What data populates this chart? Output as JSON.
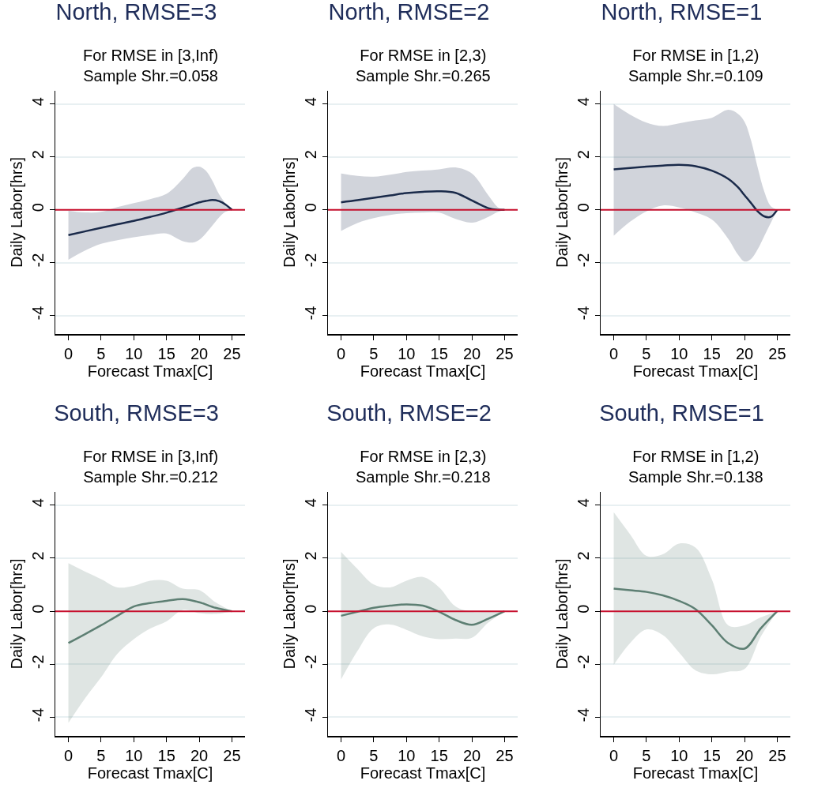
{
  "chart_data": [
    {
      "type": "line",
      "title": "North, RMSE=3",
      "subtitle": "For RMSE in [3,Inf)\nSample Shr.=0.058",
      "xlabel": "Forecast Tmax[C]",
      "ylabel": "Daily Labor[hrs]",
      "xlim": [
        -2,
        27
      ],
      "xticks": [
        0,
        5,
        10,
        15,
        20,
        25
      ],
      "ylim": [
        -4.7,
        4.5
      ],
      "yticks": [
        -4,
        -2,
        0,
        2,
        4
      ],
      "grid": "y",
      "ref_lines": [
        {
          "axis": "y",
          "value": 0,
          "color": "#c8102e"
        }
      ],
      "series": [
        {
          "color": "#1a2a4a",
          "x": [
            0,
            2.5,
            5,
            7.5,
            10,
            12.5,
            15,
            17.5,
            19,
            20,
            21,
            22,
            23,
            24,
            25
          ],
          "values": [
            -0.96,
            -0.82,
            -0.68,
            -0.55,
            -0.42,
            -0.27,
            -0.11,
            0.08,
            0.2,
            0.28,
            0.33,
            0.37,
            0.33,
            0.2,
            0
          ],
          "upper": [
            -0.04,
            -0.1,
            -0.08,
            0.1,
            0.25,
            0.4,
            0.6,
            1.17,
            1.58,
            1.63,
            1.48,
            1.1,
            0.6,
            0.25,
            0
          ],
          "lower": [
            -1.89,
            -1.55,
            -1.29,
            -1.15,
            -1.04,
            -0.95,
            -0.9,
            -1.19,
            -1.24,
            -1.14,
            -0.9,
            -0.6,
            -0.3,
            -0.08,
            0
          ]
        }
      ]
    },
    {
      "type": "line",
      "title": "North, RMSE=2",
      "subtitle": "For RMSE in [2,3)\nSample Shr.=0.265",
      "xlabel": "Forecast Tmax[C]",
      "ylabel": "Daily Labor[hrs]",
      "xlim": [
        -2,
        27
      ],
      "xticks": [
        0,
        5,
        10,
        15,
        20,
        25
      ],
      "ylim": [
        -4.7,
        4.5
      ],
      "yticks": [
        -4,
        -2,
        0,
        2,
        4
      ],
      "grid": "y",
      "ref_lines": [
        {
          "axis": "y",
          "value": 0,
          "color": "#c8102e"
        }
      ],
      "series": [
        {
          "color": "#1a2a4a",
          "x": [
            0,
            2.5,
            5,
            7.5,
            10,
            12.5,
            15,
            17.5,
            20,
            22.5,
            24,
            25
          ],
          "values": [
            0.28,
            0.36,
            0.45,
            0.54,
            0.63,
            0.68,
            0.7,
            0.64,
            0.35,
            0.06,
            0,
            0
          ],
          "upper": [
            1.37,
            1.28,
            1.25,
            1.33,
            1.43,
            1.48,
            1.53,
            1.6,
            1.37,
            0.55,
            0.09,
            0
          ],
          "lower": [
            -0.8,
            -0.5,
            -0.32,
            -0.2,
            -0.13,
            -0.11,
            -0.11,
            -0.35,
            -0.49,
            -0.27,
            -0.08,
            0
          ]
        }
      ]
    },
    {
      "type": "line",
      "title": "North, RMSE=1",
      "subtitle": "For RMSE in [1,2)\nSample Shr.=0.109",
      "xlabel": "Forecast Tmax[C]",
      "ylabel": "Daily Labor[hrs]",
      "xlim": [
        -2,
        27
      ],
      "xticks": [
        0,
        5,
        10,
        15,
        20,
        25
      ],
      "ylim": [
        -4.7,
        4.5
      ],
      "yticks": [
        -4,
        -2,
        0,
        2,
        4
      ],
      "grid": "y",
      "ref_lines": [
        {
          "axis": "y",
          "value": 0,
          "color": "#c8102e"
        }
      ],
      "series": [
        {
          "color": "#1a2a4a",
          "x": [
            0,
            2.5,
            5,
            7.5,
            10,
            12.5,
            15,
            17.5,
            19,
            20,
            21,
            22,
            23,
            24,
            25
          ],
          "values": [
            1.53,
            1.58,
            1.63,
            1.67,
            1.7,
            1.65,
            1.48,
            1.17,
            0.85,
            0.55,
            0.25,
            -0.06,
            -0.25,
            -0.27,
            0
          ],
          "upper": [
            4.0,
            3.6,
            3.3,
            3.17,
            3.27,
            3.38,
            3.48,
            3.78,
            3.63,
            3.33,
            2.62,
            1.6,
            0.7,
            0.14,
            0
          ],
          "lower": [
            -0.98,
            -0.45,
            -0.06,
            0.16,
            0.09,
            -0.1,
            -0.37,
            -1.1,
            -1.7,
            -1.96,
            -1.86,
            -1.5,
            -1.0,
            -0.5,
            0
          ]
        }
      ]
    },
    {
      "type": "line",
      "title": "South, RMSE=3",
      "subtitle": "For RMSE in [3,Inf)\nSample Shr.=0.212",
      "xlabel": "Forecast Tmax[C]",
      "ylabel": "Daily Labor[hrs]",
      "xlim": [
        -2,
        27
      ],
      "xticks": [
        0,
        5,
        10,
        15,
        20,
        25
      ],
      "ylim": [
        -4.7,
        4.5
      ],
      "yticks": [
        -4,
        -2,
        0,
        2,
        4
      ],
      "grid": "y",
      "ref_lines": [
        {
          "axis": "y",
          "value": 0,
          "color": "#c8102e"
        }
      ],
      "series": [
        {
          "color": "#5d7f73",
          "x": [
            0,
            2.5,
            5,
            7.5,
            10,
            12.5,
            15,
            17.5,
            20,
            22.5,
            25
          ],
          "values": [
            -1.2,
            -0.87,
            -0.53,
            -0.17,
            0.18,
            0.31,
            0.39,
            0.46,
            0.34,
            0.13,
            0
          ],
          "upper": [
            1.81,
            1.5,
            1.21,
            0.9,
            0.96,
            1.15,
            1.15,
            0.85,
            0.8,
            0.34,
            0
          ],
          "lower": [
            -4.21,
            -3.3,
            -2.49,
            -1.6,
            -1.05,
            -0.65,
            -0.38,
            0.05,
            -0.07,
            -0.1,
            0
          ]
        }
      ]
    },
    {
      "type": "line",
      "title": "South, RMSE=2",
      "subtitle": "For RMSE in [2,3)\nSample Shr.=0.218",
      "xlabel": "Forecast Tmax[C]",
      "ylabel": "Daily Labor[hrs]",
      "xlim": [
        -2,
        27
      ],
      "xticks": [
        0,
        5,
        10,
        15,
        20,
        25
      ],
      "ylim": [
        -4.7,
        4.5
      ],
      "yticks": [
        -4,
        -2,
        0,
        2,
        4
      ],
      "grid": "y",
      "ref_lines": [
        {
          "axis": "y",
          "value": 0,
          "color": "#c8102e"
        }
      ],
      "series": [
        {
          "color": "#5d7f73",
          "x": [
            0,
            2.5,
            5,
            7.5,
            10,
            12.5,
            15,
            17.5,
            20,
            22.5,
            25
          ],
          "values": [
            -0.17,
            -0.02,
            0.13,
            0.21,
            0.26,
            0.21,
            -0.02,
            -0.33,
            -0.51,
            -0.28,
            0
          ],
          "upper": [
            2.24,
            1.6,
            1.01,
            0.9,
            1.15,
            1.29,
            0.9,
            0.18,
            -0.02,
            -0.02,
            0
          ],
          "lower": [
            -2.57,
            -1.5,
            -0.64,
            -0.5,
            -0.7,
            -0.95,
            -1.05,
            -1.03,
            -1.0,
            -0.43,
            0
          ]
        }
      ]
    },
    {
      "type": "line",
      "title": "South, RMSE=1",
      "subtitle": "For RMSE in [1,2)\nSample Shr.=0.138",
      "xlabel": "Forecast Tmax[C]",
      "ylabel": "Daily Labor[hrs]",
      "xlim": [
        -2,
        27
      ],
      "xticks": [
        0,
        5,
        10,
        15,
        20,
        25
      ],
      "ylim": [
        -4.7,
        4.5
      ],
      "yticks": [
        -4,
        -2,
        0,
        2,
        4
      ],
      "grid": "y",
      "ref_lines": [
        {
          "axis": "y",
          "value": 0,
          "color": "#c8102e"
        }
      ],
      "series": [
        {
          "color": "#5d7f73",
          "x": [
            0,
            2.5,
            5,
            7.5,
            10,
            12.5,
            15,
            17.5,
            20,
            22.5,
            25
          ],
          "values": [
            0.85,
            0.79,
            0.73,
            0.6,
            0.39,
            0.08,
            -0.53,
            -1.2,
            -1.41,
            -0.64,
            0
          ],
          "upper": [
            3.73,
            2.9,
            2.09,
            2.15,
            2.55,
            2.4,
            1.2,
            -0.53,
            -0.53,
            -0.23,
            0
          ],
          "lower": [
            -2.02,
            -1.2,
            -0.69,
            -0.9,
            -1.56,
            -2.23,
            -2.38,
            -2.28,
            -2.18,
            -0.95,
            0
          ]
        }
      ]
    }
  ]
}
